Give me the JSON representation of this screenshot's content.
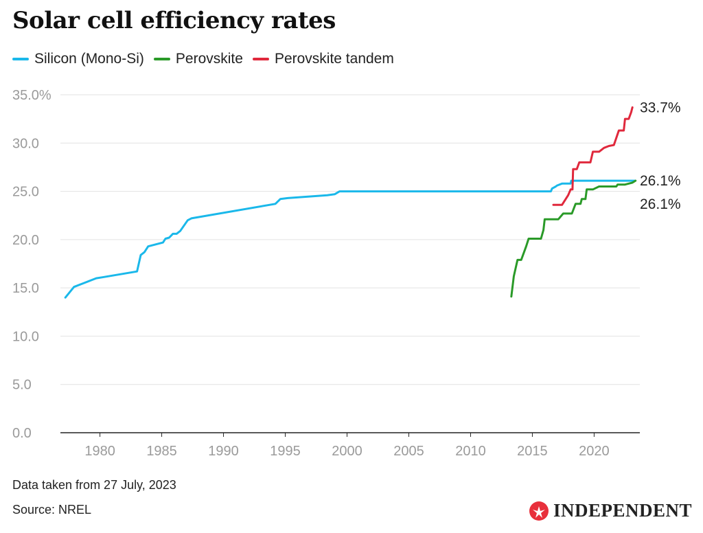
{
  "title": "Solar cell efficiency rates",
  "footer": {
    "note": "Data taken from 27 July, 2023",
    "source": "Source: NREL"
  },
  "brand": {
    "name": "INDEPENDENT",
    "icon": "eagle-logo-icon",
    "color": "#e8303c"
  },
  "chart_data": {
    "type": "line",
    "title": "Solar cell efficiency rates",
    "xlabel": "",
    "ylabel": "",
    "xlim": [
      1976.8,
      2023.7
    ],
    "ylim": [
      0,
      35
    ],
    "x_ticks": [
      1980,
      1985,
      1990,
      1995,
      2000,
      2005,
      2010,
      2015,
      2020
    ],
    "y_ticks": [
      0,
      5,
      10,
      15,
      20,
      25,
      30,
      35
    ],
    "y_tick_labels": [
      "0.0",
      "5.0",
      "10.0",
      "15.0",
      "20.0",
      "25.0",
      "30.0",
      "35.0%"
    ],
    "grid": "horizontal",
    "legend_position": "top-left",
    "series": [
      {
        "name": "Silicon (Mono-Si)",
        "color": "#1ab8ea",
        "end_label": "26.1%",
        "points": [
          [
            1977.2,
            14.0
          ],
          [
            1977.9,
            15.1
          ],
          [
            1978.7,
            15.5
          ],
          [
            1979.7,
            16.0
          ],
          [
            1980.2,
            16.1
          ],
          [
            1983.0,
            16.7
          ],
          [
            1983.3,
            18.4
          ],
          [
            1983.6,
            18.7
          ],
          [
            1983.9,
            19.3
          ],
          [
            1985.1,
            19.7
          ],
          [
            1985.3,
            20.1
          ],
          [
            1985.6,
            20.2
          ],
          [
            1985.9,
            20.6
          ],
          [
            1986.2,
            20.6
          ],
          [
            1986.5,
            20.9
          ],
          [
            1987.1,
            22.0
          ],
          [
            1987.4,
            22.2
          ],
          [
            1994.2,
            23.7
          ],
          [
            1994.6,
            24.2
          ],
          [
            1995.2,
            24.3
          ],
          [
            1998.4,
            24.6
          ],
          [
            1999.0,
            24.7
          ],
          [
            1999.4,
            25.0
          ],
          [
            2016.5,
            25.0
          ],
          [
            2016.6,
            25.3
          ],
          [
            2016.9,
            25.5
          ],
          [
            2017.0,
            25.6
          ],
          [
            2017.4,
            25.8
          ],
          [
            2017.9,
            25.8
          ],
          [
            2018.1,
            25.8
          ],
          [
            2018.15,
            26.1
          ],
          [
            2023.3,
            26.1
          ]
        ]
      },
      {
        "name": "Perovskite",
        "color": "#2a9a28",
        "end_label": "26.1%",
        "points": [
          [
            2013.3,
            14.1
          ],
          [
            2013.5,
            16.2
          ],
          [
            2013.8,
            17.9
          ],
          [
            2014.1,
            17.9
          ],
          [
            2014.5,
            19.3
          ],
          [
            2014.7,
            20.1
          ],
          [
            2015.7,
            20.1
          ],
          [
            2015.9,
            21.0
          ],
          [
            2016.0,
            22.1
          ],
          [
            2017.1,
            22.1
          ],
          [
            2017.5,
            22.7
          ],
          [
            2017.9,
            22.7
          ],
          [
            2018.2,
            22.7
          ],
          [
            2018.5,
            23.7
          ],
          [
            2018.9,
            23.7
          ],
          [
            2019.0,
            24.2
          ],
          [
            2019.3,
            24.2
          ],
          [
            2019.4,
            25.2
          ],
          [
            2019.9,
            25.2
          ],
          [
            2020.4,
            25.5
          ],
          [
            2021.0,
            25.5
          ],
          [
            2021.8,
            25.5
          ],
          [
            2021.9,
            25.7
          ],
          [
            2022.5,
            25.7
          ],
          [
            2023.1,
            25.9
          ],
          [
            2023.35,
            26.1
          ]
        ]
      },
      {
        "name": "Perovskite tandem",
        "color": "#e0283c",
        "end_label": "33.7%",
        "points": [
          [
            2016.7,
            23.6
          ],
          [
            2017.4,
            23.6
          ],
          [
            2017.9,
            24.6
          ],
          [
            2018.1,
            25.2
          ],
          [
            2018.25,
            25.2
          ],
          [
            2018.3,
            27.3
          ],
          [
            2018.6,
            27.3
          ],
          [
            2018.8,
            28.0
          ],
          [
            2019.7,
            28.0
          ],
          [
            2019.9,
            29.1
          ],
          [
            2020.4,
            29.1
          ],
          [
            2020.8,
            29.5
          ],
          [
            2021.2,
            29.7
          ],
          [
            2021.6,
            29.8
          ],
          [
            2022.0,
            31.3
          ],
          [
            2022.4,
            31.3
          ],
          [
            2022.5,
            32.5
          ],
          [
            2022.8,
            32.5
          ],
          [
            2023.0,
            33.2
          ],
          [
            2023.1,
            33.7
          ]
        ]
      }
    ]
  }
}
